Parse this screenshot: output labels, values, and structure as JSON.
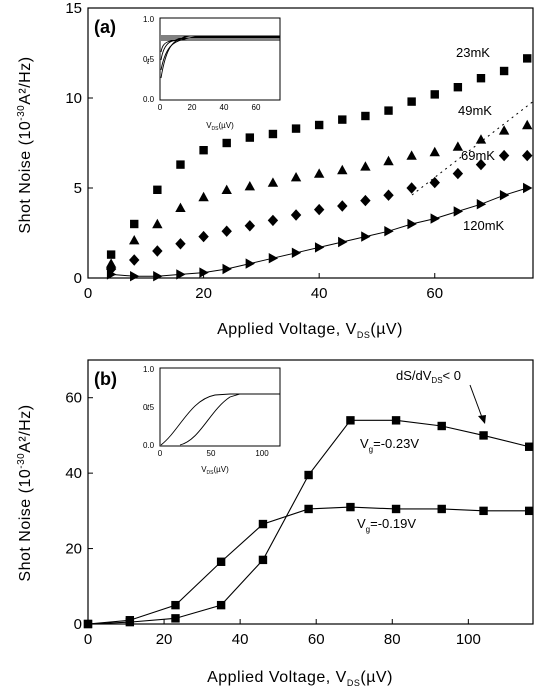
{
  "chart_data": [
    {
      "type": "scatter",
      "panel_label": "(a)",
      "xlabel_main": "Applied Voltage, V",
      "xlabel_sub": "DS",
      "xlabel_unit": "(µV)",
      "ylabel": "Shot Noise (10",
      "ylabel_exp": "-30",
      "ylabel_unit": "A²/Hz)",
      "xlim": [
        0,
        77
      ],
      "ylim": [
        0,
        15
      ],
      "xticks": [
        0,
        20,
        40,
        60
      ],
      "yticks": [
        0,
        5,
        10,
        15
      ],
      "series": [
        {
          "name": "23 mK",
          "marker": "square",
          "x": [
            4,
            8,
            12,
            16,
            20,
            24,
            28,
            32,
            36,
            40,
            44,
            48,
            52,
            56,
            60,
            64,
            68,
            72,
            76
          ],
          "y": [
            1.3,
            3.0,
            4.9,
            6.3,
            7.1,
            7.5,
            7.8,
            8.0,
            8.3,
            8.5,
            8.8,
            9.0,
            9.3,
            9.8,
            10.2,
            10.6,
            11.1,
            11.5,
            12.2
          ]
        },
        {
          "name": "49 mK",
          "marker": "triangle",
          "x": [
            4,
            8,
            12,
            16,
            20,
            24,
            28,
            32,
            36,
            40,
            44,
            48,
            52,
            56,
            60,
            64,
            68,
            72,
            76
          ],
          "y": [
            0.8,
            2.1,
            3.0,
            3.9,
            4.5,
            4.9,
            5.1,
            5.3,
            5.6,
            5.8,
            6.0,
            6.2,
            6.5,
            6.8,
            7.0,
            7.3,
            7.7,
            8.2,
            8.5
          ]
        },
        {
          "name": "69 mK",
          "marker": "diamond",
          "x": [
            4,
            8,
            12,
            16,
            20,
            24,
            28,
            32,
            36,
            40,
            44,
            48,
            52,
            56,
            60,
            64,
            68,
            72,
            76
          ],
          "y": [
            0.5,
            1.0,
            1.5,
            1.9,
            2.3,
            2.6,
            2.9,
            3.2,
            3.5,
            3.8,
            4.0,
            4.3,
            4.6,
            5.0,
            5.3,
            5.8,
            6.3,
            6.8,
            6.8
          ]
        },
        {
          "name": "120 mK",
          "marker": "triangle-right",
          "x": [
            4,
            8,
            12,
            16,
            20,
            24,
            28,
            32,
            36,
            40,
            44,
            48,
            52,
            56,
            60,
            64,
            68,
            72,
            76
          ],
          "y": [
            0.2,
            0.1,
            0.1,
            0.2,
            0.3,
            0.5,
            0.8,
            1.1,
            1.4,
            1.7,
            2.0,
            2.3,
            2.6,
            3.0,
            3.3,
            3.7,
            4.1,
            4.6,
            5.0
          ]
        }
      ],
      "series_labels": [
        "23mK",
        "49mK",
        "69mK",
        "120mK"
      ],
      "inset": {
        "xlabel_main": "V",
        "xlabel_sub": "DS",
        "xlabel_unit": "(µV)",
        "ylabel": "t",
        "xticks": [
          "0",
          "20",
          "40",
          "60"
        ],
        "yticks": [
          "0.0",
          "0.5",
          "1.0"
        ]
      }
    },
    {
      "type": "line",
      "panel_label": "(b)",
      "xlabel_main": "Applied Voltage, V",
      "xlabel_sub": "DS",
      "xlabel_unit": "(µV)",
      "ylabel": "Shot Noise (10",
      "ylabel_exp": "-30",
      "ylabel_unit": "A²/Hz)",
      "xlim": [
        0,
        117
      ],
      "ylim": [
        0,
        70
      ],
      "xticks": [
        0,
        20,
        40,
        60,
        80,
        100
      ],
      "yticks": [
        0,
        20,
        40,
        60
      ],
      "series": [
        {
          "label_main": "V",
          "label_sub": "g",
          "label_val": "=-0.23V",
          "marker": "square",
          "x": [
            0,
            11,
            23,
            35,
            46,
            58,
            69,
            81,
            93,
            104,
            116
          ],
          "y": [
            0,
            0.5,
            1.5,
            5,
            17,
            39.5,
            54,
            54,
            52.5,
            50,
            47
          ]
        },
        {
          "label_main": "V",
          "label_sub": "g",
          "label_val": "=-0.19V",
          "marker": "square",
          "x": [
            0,
            11,
            23,
            35,
            46,
            58,
            69,
            81,
            93,
            104,
            116
          ],
          "y": [
            0,
            1,
            5,
            16.5,
            26.5,
            30.5,
            31,
            30.5,
            30.5,
            30,
            30
          ]
        }
      ],
      "annotation": {
        "pre": "dS/dV",
        "sub": "DS",
        "post": "< 0"
      },
      "inset": {
        "xlabel_main": "V",
        "xlabel_sub": "DS",
        "xlabel_unit": "(µV)",
        "ylabel": "t",
        "xticks": [
          "0",
          "50",
          "100"
        ],
        "yticks": [
          "0.0",
          "0.5",
          "1.0"
        ]
      }
    }
  ]
}
